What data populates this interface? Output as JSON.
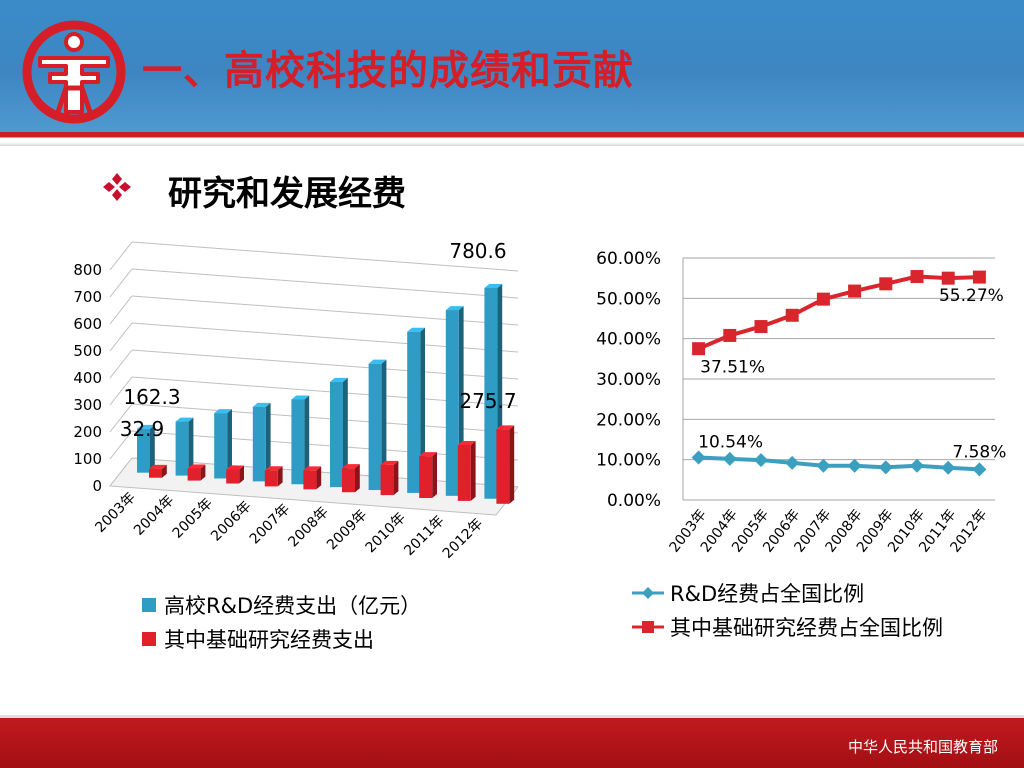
{
  "header": {
    "title": "一、高校科技的成绩和贡献",
    "logo_icon": "ministry-of-education-logo",
    "colors": {
      "blue": "#3a8cc9",
      "red": "#d51e27"
    }
  },
  "section": {
    "bullet_icon": "diamond-bullet-icon",
    "subtitle": "研究和发展经费"
  },
  "chart_data": [
    {
      "type": "bar",
      "style": "3d-clustered",
      "categories": [
        "2003年",
        "2004年",
        "2005年",
        "2006年",
        "2007年",
        "2008年",
        "2009年",
        "2010年",
        "2011年",
        "2012年"
      ],
      "series": [
        {
          "name": "高校R&D经费支出（亿元）",
          "color": "#2e9cc5",
          "values": [
            162.3,
            200,
            242,
            276,
            314,
            390,
            468,
            597,
            688,
            780.6
          ]
        },
        {
          "name": "其中基础研究经费支出",
          "color": "#e0212b",
          "values": [
            32.9,
            45,
            52,
            60,
            70,
            89,
            112,
            155,
            207,
            275.7
          ]
        }
      ],
      "yticks": [
        "0",
        "100",
        "200",
        "300",
        "400",
        "500",
        "600",
        "700",
        "800"
      ],
      "ylim": [
        0,
        800
      ],
      "data_labels": [
        {
          "series": 0,
          "index": 0,
          "text": "162.3"
        },
        {
          "series": 1,
          "index": 0,
          "text": "32.9"
        },
        {
          "series": 0,
          "index": 9,
          "text": "780.6"
        },
        {
          "series": 1,
          "index": 9,
          "text": "275.7"
        }
      ],
      "grid": true,
      "legend": "bottom"
    },
    {
      "type": "line",
      "categories": [
        "2003年",
        "2004年",
        "2005年",
        "2006年",
        "2007年",
        "2008年",
        "2009年",
        "2010年",
        "2011年",
        "2012年"
      ],
      "series": [
        {
          "name": "R&D经费占全国比例",
          "color": "#3b9fc0",
          "marker": "diamond",
          "values": [
            10.54,
            10.2,
            9.9,
            9.2,
            8.5,
            8.5,
            8.1,
            8.5,
            8.0,
            7.58
          ]
        },
        {
          "name": "其中基础研究经费占全国比例",
          "color": "#d8262c",
          "marker": "square",
          "values": [
            37.51,
            40.8,
            43.0,
            45.8,
            49.8,
            51.8,
            53.6,
            55.4,
            55.0,
            55.27
          ]
        }
      ],
      "yticks": [
        "0.00%",
        "10.00%",
        "20.00%",
        "30.00%",
        "40.00%",
        "50.00%",
        "60.00%"
      ],
      "ylim": [
        0,
        60
      ],
      "data_labels": [
        {
          "series": 0,
          "index": 0,
          "text": "10.54%"
        },
        {
          "series": 0,
          "index": 9,
          "text": "7.58%"
        },
        {
          "series": 1,
          "index": 0,
          "text": "37.51%"
        },
        {
          "series": 1,
          "index": 9,
          "text": "55.27%"
        }
      ],
      "grid": true,
      "legend": "bottom"
    }
  ],
  "footer": {
    "text": "中华人民共和国教育部"
  }
}
